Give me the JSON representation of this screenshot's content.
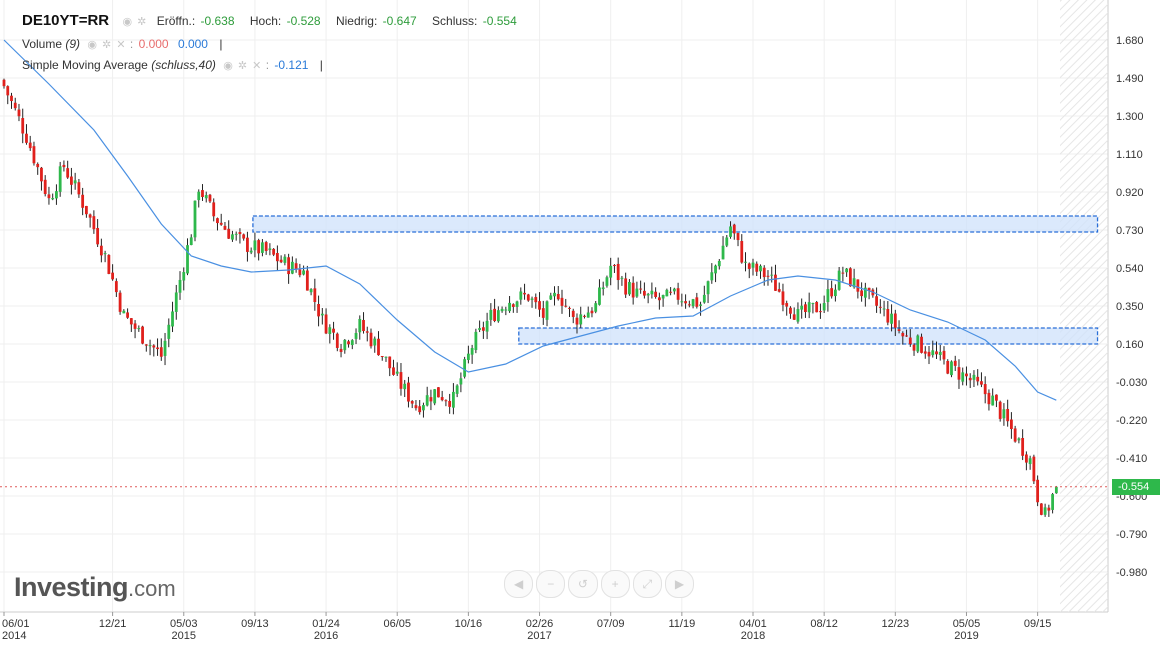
{
  "header": {
    "symbol": "DE10YT=RR",
    "open_label": "Eröffn.:",
    "open_value": "-0.638",
    "high_label": "Hoch:",
    "high_value": "-0.528",
    "low_label": "Niedrig:",
    "low_value": "-0.647",
    "close_label": "Schluss:",
    "close_value": "-0.554"
  },
  "volume": {
    "label": "Volume",
    "param": "(9)",
    "value1": "0.000",
    "value2": "0.000",
    "separator": "|"
  },
  "sma": {
    "label": "Simple Moving Average",
    "param": "(schluss,40)",
    "value": "-0.121",
    "separator": "|"
  },
  "logo": {
    "brand": "Investing",
    "suffix": ".com"
  },
  "toolbar": {
    "buttons": [
      {
        "icon": "scroll-left-icon",
        "glyph": "◀"
      },
      {
        "icon": "zoom-out-icon",
        "glyph": "−"
      },
      {
        "icon": "zoom-reset-icon",
        "glyph": "↺"
      },
      {
        "icon": "zoom-in-icon",
        "glyph": "+"
      },
      {
        "icon": "fit-icon",
        "glyph": "⤢"
      },
      {
        "icon": "scroll-right-icon",
        "glyph": "▶"
      }
    ]
  },
  "last_price_tag": "-0.554",
  "colors": {
    "up": "#2eb84b",
    "down": "#e0201c",
    "sma": "#4a90e2",
    "zone": "#cfe2fb",
    "zone_border": "#2a6fd8",
    "price_line": "#e05a5a"
  },
  "chart_data": {
    "type": "candlestick",
    "y_axis": {
      "ticks": [
        "1.680",
        "1.490",
        "1.300",
        "1.110",
        "0.920",
        "0.730",
        "0.540",
        "0.350",
        "0.160",
        "-0.030",
        "-0.220",
        "-0.410",
        "-0.600",
        "-0.790",
        "-0.980"
      ],
      "range": [
        -1.08,
        1.78
      ]
    },
    "x_axis": {
      "labels": [
        {
          "date": "06/01",
          "year": "2014"
        },
        {
          "date": "12/21",
          "year": ""
        },
        {
          "date": "05/03",
          "year": "2015"
        },
        {
          "date": "09/13",
          "year": ""
        },
        {
          "date": "01/24",
          "year": "2016"
        },
        {
          "date": "06/05",
          "year": ""
        },
        {
          "date": "10/16",
          "year": ""
        },
        {
          "date": "02/26",
          "year": "2017"
        },
        {
          "date": "07/09",
          "year": ""
        },
        {
          "date": "11/19",
          "year": ""
        },
        {
          "date": "04/01",
          "year": "2018"
        },
        {
          "date": "08/12",
          "year": ""
        },
        {
          "date": "12/23",
          "year": ""
        },
        {
          "date": "05/05",
          "year": "2019"
        },
        {
          "date": "09/15",
          "year": ""
        }
      ],
      "week_index": [
        0,
        29,
        48,
        67,
        86,
        105,
        124,
        143,
        162,
        181,
        200,
        219,
        238,
        257,
        276
      ]
    },
    "close_path": [
      [
        0,
        1.45
      ],
      [
        6,
        1.2
      ],
      [
        12,
        0.88
      ],
      [
        16,
        1.05
      ],
      [
        22,
        0.83
      ],
      [
        27,
        0.6
      ],
      [
        32,
        0.3
      ],
      [
        38,
        0.18
      ],
      [
        42,
        0.1
      ],
      [
        47,
        0.48
      ],
      [
        50,
        0.72
      ],
      [
        52,
        0.95
      ],
      [
        56,
        0.8
      ],
      [
        60,
        0.72
      ],
      [
        64,
        0.66
      ],
      [
        70,
        0.62
      ],
      [
        76,
        0.55
      ],
      [
        80,
        0.52
      ],
      [
        85,
        0.28
      ],
      [
        90,
        0.16
      ],
      [
        95,
        0.25
      ],
      [
        100,
        0.14
      ],
      [
        105,
        -0.02
      ],
      [
        110,
        -0.15
      ],
      [
        115,
        -0.08
      ],
      [
        120,
        -0.12
      ],
      [
        125,
        0.15
      ],
      [
        130,
        0.3
      ],
      [
        135,
        0.38
      ],
      [
        140,
        0.4
      ],
      [
        144,
        0.3
      ],
      [
        148,
        0.42
      ],
      [
        152,
        0.28
      ],
      [
        158,
        0.35
      ],
      [
        162,
        0.55
      ],
      [
        166,
        0.45
      ],
      [
        170,
        0.4
      ],
      [
        175,
        0.38
      ],
      [
        180,
        0.4
      ],
      [
        186,
        0.36
      ],
      [
        190,
        0.55
      ],
      [
        194,
        0.75
      ],
      [
        198,
        0.55
      ],
      [
        204,
        0.5
      ],
      [
        208,
        0.4
      ],
      [
        212,
        0.3
      ],
      [
        218,
        0.35
      ],
      [
        224,
        0.52
      ],
      [
        230,
        0.4
      ],
      [
        236,
        0.3
      ],
      [
        240,
        0.2
      ],
      [
        246,
        0.14
      ],
      [
        252,
        0.05
      ],
      [
        258,
        -0.02
      ],
      [
        264,
        -0.12
      ],
      [
        270,
        -0.3
      ],
      [
        274,
        -0.42
      ],
      [
        276,
        -0.6
      ],
      [
        278,
        -0.7
      ],
      [
        280,
        -0.6
      ],
      [
        281,
        -0.554
      ]
    ],
    "sma_path": [
      [
        0,
        1.68
      ],
      [
        12,
        1.46
      ],
      [
        24,
        1.23
      ],
      [
        33,
        1.0
      ],
      [
        42,
        0.76
      ],
      [
        50,
        0.6
      ],
      [
        58,
        0.55
      ],
      [
        66,
        0.52
      ],
      [
        76,
        0.53
      ],
      [
        86,
        0.55
      ],
      [
        95,
        0.46
      ],
      [
        105,
        0.28
      ],
      [
        115,
        0.12
      ],
      [
        124,
        0.02
      ],
      [
        134,
        0.06
      ],
      [
        144,
        0.15
      ],
      [
        154,
        0.2
      ],
      [
        164,
        0.25
      ],
      [
        174,
        0.29
      ],
      [
        184,
        0.3
      ],
      [
        194,
        0.4
      ],
      [
        204,
        0.48
      ],
      [
        212,
        0.5
      ],
      [
        222,
        0.48
      ],
      [
        232,
        0.42
      ],
      [
        242,
        0.33
      ],
      [
        252,
        0.27
      ],
      [
        262,
        0.18
      ],
      [
        270,
        0.05
      ],
      [
        276,
        -0.08
      ],
      [
        281,
        -0.121
      ]
    ],
    "resistance_zone": {
      "from_week": 67,
      "to_week": 292,
      "top": 0.8,
      "bottom": 0.72
    },
    "support_zone": {
      "from_week": 138,
      "to_week": 292,
      "top": 0.24,
      "bottom": 0.16
    },
    "weeks_visible": 282,
    "last_close": -0.554,
    "grid": true,
    "legend_position": "top-left"
  }
}
